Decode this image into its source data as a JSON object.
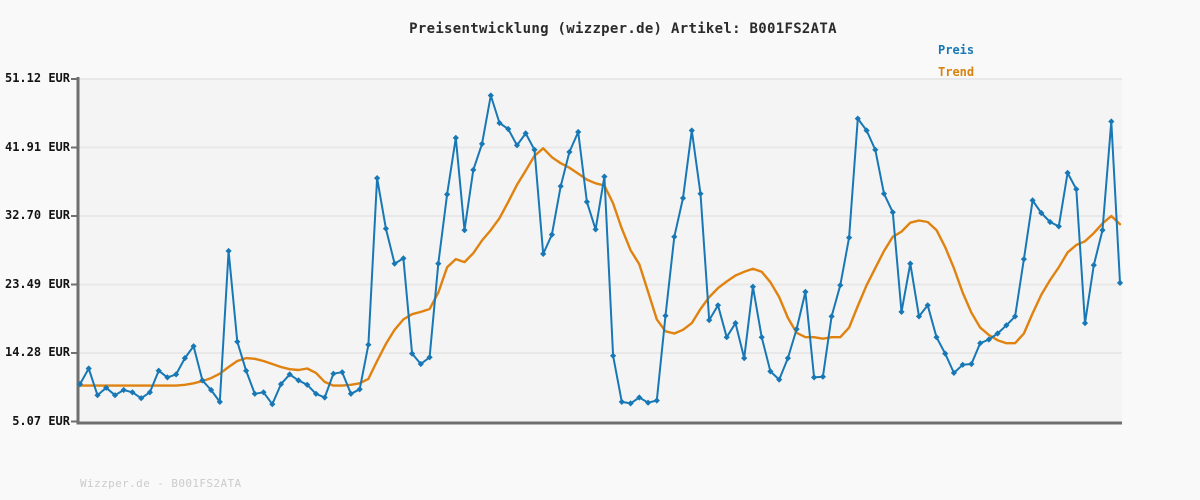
{
  "page": {
    "title": "Preisentwicklung (wizzper.de) Artikel: B001FS2ATA",
    "watermark": "Wizzper.de - B001FS2ATA"
  },
  "legend": {
    "price_label": "Preis",
    "trend_label": "Trend",
    "position": "top-right"
  },
  "colors": {
    "price_line": "#1778b5",
    "trend_line": "#e0820f",
    "page_bg": "#f9f9f9",
    "plot_bg": "#f4f4f4",
    "grid": "#e8e8e8",
    "axis": "#6f6f6f",
    "title_text": "#2b2b2b",
    "tick_text": "#141414",
    "watermark_text": "#cbcbcb"
  },
  "chart_data": {
    "type": "line",
    "title": "Preisentwicklung (wizzper.de) Artikel: B001FS2ATA",
    "xlabel": "",
    "ylabel": "",
    "x_tick_labels": [],
    "y_ticks": [
      {
        "label": "51.12 EUR",
        "value": 51.12
      },
      {
        "label": "41.91 EUR",
        "value": 41.91
      },
      {
        "label": "32.70 EUR",
        "value": 32.7
      },
      {
        "label": "23.49 EUR",
        "value": 23.49
      },
      {
        "label": "14.28 EUR",
        "value": 14.28
      },
      {
        "label": "5.07 EUR",
        "value": 5.07
      }
    ],
    "ylim": [
      5.07,
      51.12
    ],
    "grid": true,
    "legend_position": "top-right",
    "marker": "diamond",
    "series": [
      {
        "name": "Preis",
        "color": "#1778b5",
        "values": [
          10.1,
          12.2,
          8.6,
          9.6,
          8.6,
          9.3,
          9.0,
          8.2,
          9.0,
          11.9,
          11.0,
          11.4,
          13.6,
          15.2,
          10.6,
          9.3,
          7.7,
          28.0,
          15.8,
          11.9,
          8.8,
          9.0,
          7.4,
          10.1,
          11.4,
          10.6,
          10.0,
          8.8,
          8.3,
          11.5,
          11.7,
          8.8,
          9.4,
          15.4,
          37.8,
          31.0,
          26.3,
          27.0,
          14.2,
          12.8,
          13.7,
          26.3,
          35.6,
          43.2,
          30.8,
          38.9,
          42.4,
          48.9,
          45.2,
          44.4,
          42.2,
          43.8,
          41.6,
          27.6,
          30.2,
          36.7,
          41.3,
          44.0,
          34.6,
          30.9,
          38.0,
          13.9,
          7.7,
          7.5,
          8.3,
          7.6,
          7.9,
          19.3,
          29.9,
          35.1,
          44.2,
          35.7,
          18.7,
          20.7,
          16.4,
          18.3,
          13.6,
          23.2,
          16.4,
          11.8,
          10.7,
          13.6,
          17.5,
          22.5,
          11.0,
          11.1,
          19.2,
          23.4,
          29.8,
          45.8,
          44.2,
          41.6,
          35.7,
          33.2,
          19.8,
          26.3,
          19.2,
          20.7,
          16.4,
          14.2,
          11.6,
          12.7,
          12.8,
          15.6,
          16.1,
          16.9,
          18.0,
          19.2,
          26.9,
          34.8,
          33.1,
          31.9,
          31.3,
          38.5,
          36.3,
          18.3,
          26.1,
          30.8,
          45.4,
          23.7
        ]
      },
      {
        "name": "Trend",
        "color": "#e0820f",
        "values": [
          9.9,
          9.9,
          9.9,
          9.9,
          9.9,
          9.9,
          9.9,
          9.9,
          9.9,
          9.9,
          9.9,
          9.9,
          10.0,
          10.2,
          10.5,
          10.9,
          11.5,
          12.4,
          13.2,
          13.6,
          13.5,
          13.2,
          12.8,
          12.4,
          12.1,
          12.0,
          12.2,
          11.6,
          10.4,
          9.9,
          9.9,
          10.0,
          10.2,
          10.8,
          13.2,
          15.5,
          17.4,
          18.8,
          19.5,
          19.8,
          20.2,
          22.4,
          25.8,
          26.9,
          26.5,
          27.7,
          29.4,
          30.8,
          32.4,
          34.6,
          36.9,
          38.8,
          40.8,
          41.8,
          40.6,
          39.8,
          39.2,
          38.4,
          37.6,
          37.1,
          36.8,
          34.4,
          31.0,
          28.1,
          26.2,
          22.5,
          18.8,
          17.2,
          16.9,
          17.4,
          18.3,
          20.2,
          21.8,
          23.0,
          23.9,
          24.7,
          25.2,
          25.6,
          25.2,
          23.8,
          21.8,
          19.0,
          17.0,
          16.4,
          16.4,
          16.2,
          16.4,
          16.4,
          17.7,
          20.6,
          23.4,
          25.7,
          28.0,
          29.9,
          30.6,
          31.8,
          32.1,
          31.9,
          30.8,
          28.5,
          25.7,
          22.4,
          19.7,
          17.7,
          16.7,
          16.0,
          15.6,
          15.6,
          16.9,
          19.6,
          22.1,
          24.1,
          25.8,
          27.8,
          28.8,
          29.3,
          30.4,
          31.7,
          32.7,
          31.6
        ]
      }
    ]
  }
}
